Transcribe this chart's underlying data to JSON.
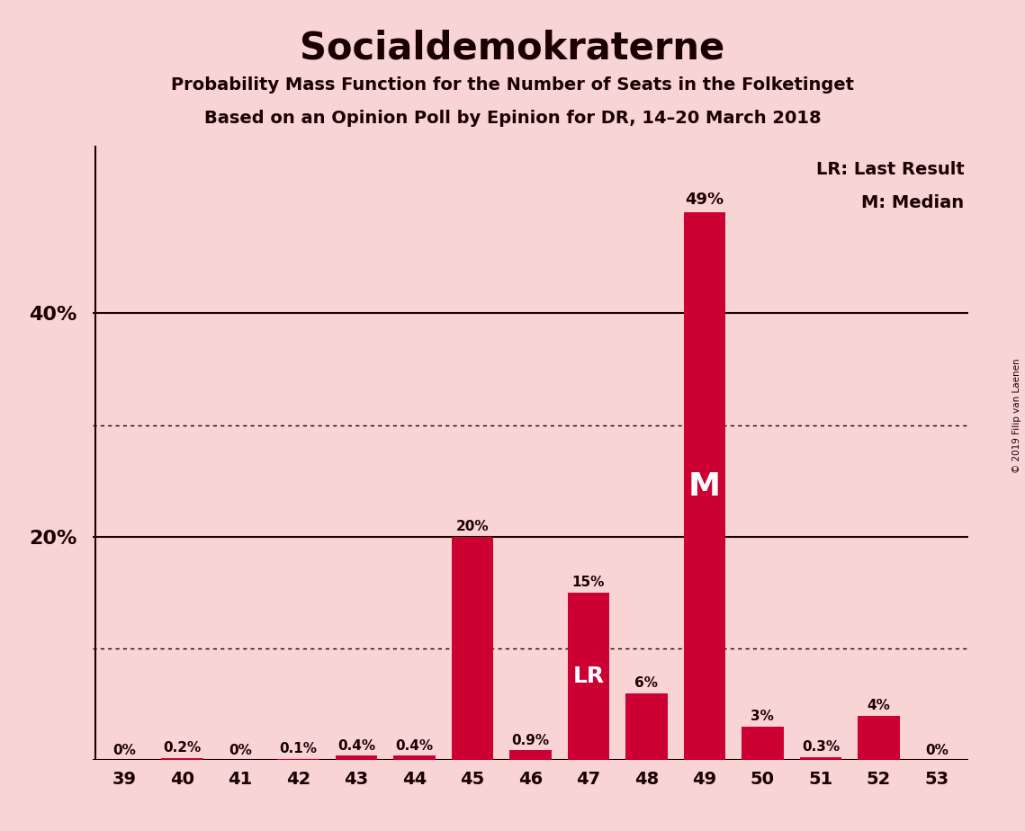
{
  "title": "Socialdemokraterne",
  "subtitle1": "Probability Mass Function for the Number of Seats in the Folketinget",
  "subtitle2": "Based on an Opinion Poll by Epinion for DR, 14–20 March 2018",
  "copyright": "© 2019 Filip van Laenen",
  "seats": [
    39,
    40,
    41,
    42,
    43,
    44,
    45,
    46,
    47,
    48,
    49,
    50,
    51,
    52,
    53
  ],
  "probabilities": [
    0.0,
    0.2,
    0.0,
    0.1,
    0.4,
    0.4,
    20.0,
    0.9,
    15.0,
    6.0,
    49.0,
    3.0,
    0.3,
    4.0,
    0.0
  ],
  "labels": [
    "0%",
    "0.2%",
    "0%",
    "0.1%",
    "0.4%",
    "0.4%",
    "20%",
    "0.9%",
    "15%",
    "6%",
    "49%",
    "3%",
    "0.3%",
    "4%",
    "0%"
  ],
  "bar_color": "#CC0033",
  "background_color": "#F9D4D4",
  "plot_bg_color": "#F9D4D4",
  "last_result_seat": 47,
  "median_seat": 49,
  "solid_yticks": [
    20,
    40
  ],
  "dotted_yticks": [
    10,
    30
  ],
  "legend_lr": "LR: Last Result",
  "legend_m": "M: Median",
  "label_inside_color": "#ffffff",
  "label_outside_color": "#1a0000",
  "ytick_label_color": "#1a0000",
  "title_color": "#1a0000",
  "inside_threshold": 49.0,
  "ylim": 55,
  "bar_width": 0.72
}
